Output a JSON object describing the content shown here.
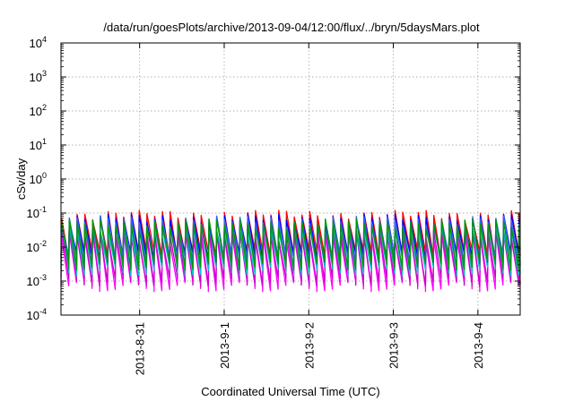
{
  "chart_data": {
    "type": "line",
    "title": "/data/run/goesPlots/archive/2013-09-04/12:00/flux/../bryn/5daysMars.plot",
    "xlabel": "Coordinated Universal Time (UTC)",
    "ylabel": "cSv/day",
    "yscale": "log",
    "ylim": [
      0.0001,
      10000
    ],
    "xlim_days_from_2013_08_30": [
      0.07,
      5.5
    ],
    "grid": true,
    "legend": "none",
    "x_ticks": [
      {
        "label": "2013-8-31",
        "day": 1
      },
      {
        "label": "2013-9-1",
        "day": 2
      },
      {
        "label": "2013-9-2",
        "day": 3
      },
      {
        "label": "2013-9-3",
        "day": 4
      },
      {
        "label": "2013-9-4",
        "day": 5
      }
    ],
    "y_ticks": [
      {
        "base": "10",
        "exp": "-4",
        "value": 0.0001
      },
      {
        "base": "10",
        "exp": "-3",
        "value": 0.001
      },
      {
        "base": "10",
        "exp": "-2",
        "value": 0.01
      },
      {
        "base": "10",
        "exp": "-1",
        "value": 0.1
      },
      {
        "base": "10",
        "exp": "0",
        "value": 1
      },
      {
        "base": "10",
        "exp": "1",
        "value": 10
      },
      {
        "base": "10",
        "exp": "2",
        "value": 100
      },
      {
        "base": "10",
        "exp": "3",
        "value": 1000
      },
      {
        "base": "10",
        "exp": "4",
        "value": 10000
      }
    ],
    "pattern": {
      "kind": "sawtooth",
      "period_days": 0.0917,
      "description": "repeating sawtooth flux traces, peaks ~0.1, troughs ~0.001"
    },
    "series": [
      {
        "color": "#ff00ff",
        "peak": 0.02,
        "trough": 0.0007
      },
      {
        "color": "#cc00cc",
        "peak": 0.025,
        "trough": 0.001
      },
      {
        "color": "#00cccc",
        "peak": 0.04,
        "trough": 0.002
      },
      {
        "color": "#00aa88",
        "peak": 0.045,
        "trough": 0.003
      },
      {
        "color": "#ff0000",
        "peak": 0.09,
        "trough": 0.006
      },
      {
        "color": "#0000ff",
        "peak": 0.07,
        "trough": 0.005
      },
      {
        "color": "#3366ff",
        "peak": 0.06,
        "trough": 0.004
      },
      {
        "color": "#009900",
        "peak": 0.05,
        "trough": 0.003
      }
    ]
  }
}
